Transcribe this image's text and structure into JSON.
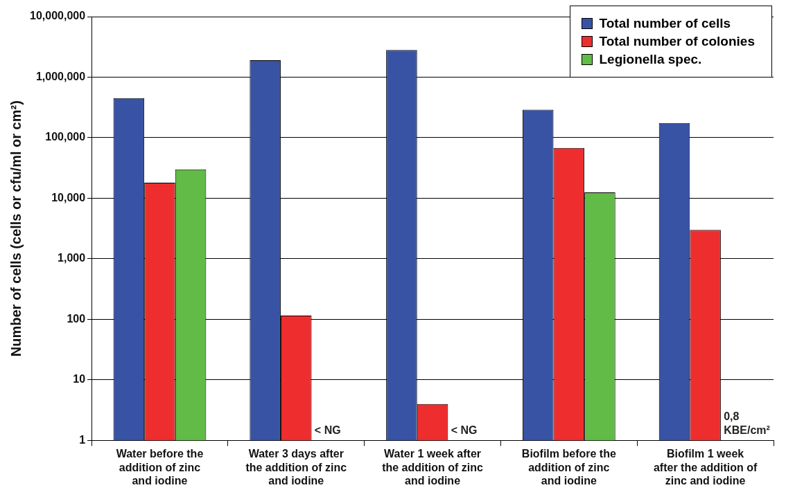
{
  "chart_data": {
    "type": "bar",
    "ylabel": "Number of cells (cells or cfu/ml or cm²)",
    "categories": [
      "Water before the addition of zinc and iodine",
      "Water 3 days after the addition of zinc and iodine",
      "Water 1 week after the addition of zinc and iodine",
      "Biofilm before the addition of zinc and iodine",
      "Biofilm 1 week after the addition of zinc and iodine"
    ],
    "series": [
      {
        "name": "Total number of cells",
        "color": "#3953a4",
        "values": [
          450000,
          1900000,
          2800000,
          290000,
          175000
        ]
      },
      {
        "name": "Total number of colonies",
        "color": "#ee2e2e",
        "values": [
          18000,
          115,
          4,
          68000,
          3000
        ]
      },
      {
        "name": "Legionella spec.",
        "color": "#62bb47",
        "values": [
          30000,
          null,
          null,
          12500,
          null
        ]
      }
    ],
    "log": "y",
    "ylim": [
      1,
      10000000
    ],
    "yticks": [
      1,
      10,
      100,
      {
        "value": 1000,
        "label": "1,000"
      },
      {
        "value": 10000,
        "label": "10,000"
      },
      {
        "value": 100000,
        "label": "100,000"
      },
      {
        "value": 1000000,
        "label": "1,000,000"
      },
      {
        "value": 10000000,
        "label": "10,000,000"
      }
    ],
    "grid": "y",
    "legend": "top right",
    "annotations": [
      "< NG",
      "< NG",
      "0,8 KBE/cm²"
    ]
  }
}
